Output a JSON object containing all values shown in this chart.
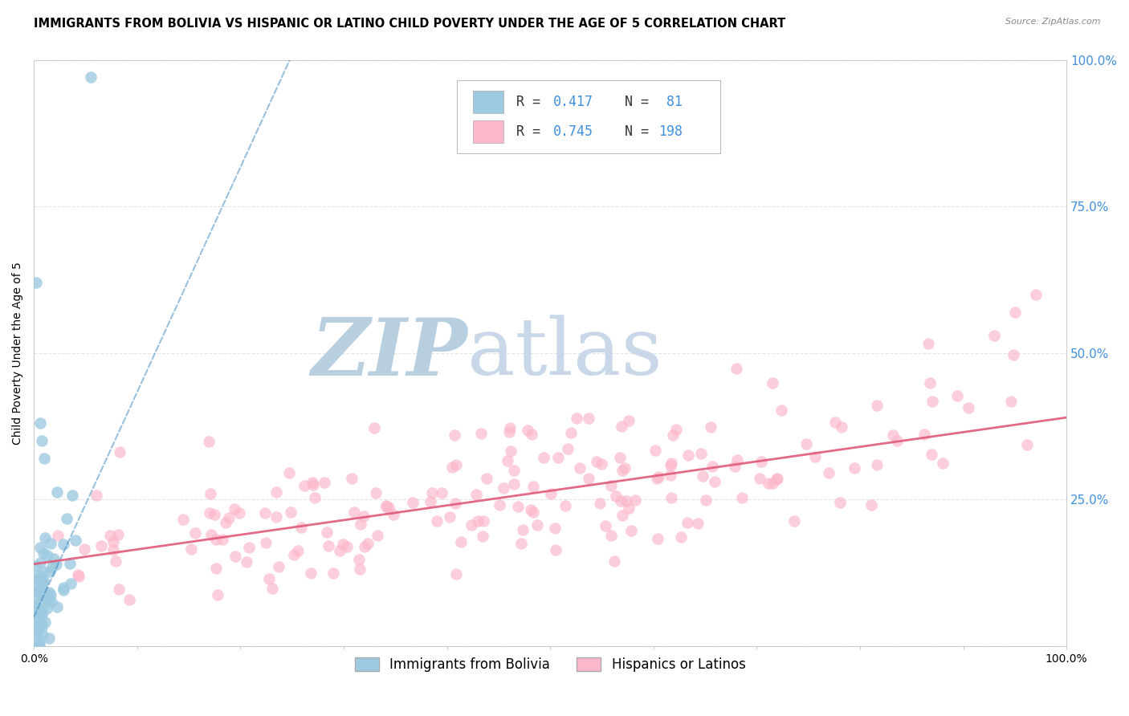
{
  "title": "IMMIGRANTS FROM BOLIVIA VS HISPANIC OR LATINO CHILD POVERTY UNDER THE AGE OF 5 CORRELATION CHART",
  "source": "Source: ZipAtlas.com",
  "ylabel": "Child Poverty Under the Age of 5",
  "xlabel": "",
  "series1_label": "Immigrants from Bolivia",
  "series2_label": "Hispanics or Latinos",
  "series1_color": "#9ecae1",
  "series2_color": "#fcb8cb",
  "series1_line_color": "#3182bd",
  "series2_line_color": "#e05a7a",
  "series1_R": 0.417,
  "series1_N": 81,
  "series2_R": 0.745,
  "series2_N": 198,
  "watermark_zip_color": "#b8cfe0",
  "watermark_atlas_color": "#c8d8e8",
  "background_color": "#ffffff",
  "grid_color": "#dddddd",
  "xlim": [
    0,
    1.0
  ],
  "ylim": [
    0,
    1.0
  ],
  "right_tick_color": "#4090e0",
  "title_fontsize": 10.5,
  "axis_label_fontsize": 10,
  "tick_fontsize": 9,
  "legend_fontsize": 12,
  "legend_text_color": "#333333",
  "legend_value_color": "#4090e0"
}
